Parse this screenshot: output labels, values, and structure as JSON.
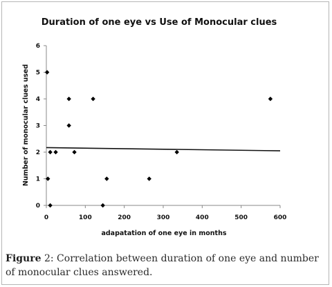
{
  "chart_data": {
    "type": "scatter",
    "title": "Duration of one eye vs Use of Monocular clues",
    "xlabel": "adapatation of one eye in months",
    "ylabel": "Number of monocular clues used",
    "xlim": [
      0,
      600
    ],
    "ylim": [
      0,
      6
    ],
    "x_ticks": [
      0,
      100,
      200,
      300,
      400,
      500,
      600
    ],
    "y_ticks": [
      0,
      1,
      2,
      3,
      4,
      5,
      6
    ],
    "grid": false,
    "legend": "none",
    "marker": "diamond",
    "marker_color": "#000000",
    "points": [
      {
        "x": 2,
        "y": 5
      },
      {
        "x": 4,
        "y": 1
      },
      {
        "x": 10,
        "y": 0
      },
      {
        "x": 10,
        "y": 2
      },
      {
        "x": 24,
        "y": 2
      },
      {
        "x": 58,
        "y": 4
      },
      {
        "x": 58,
        "y": 3
      },
      {
        "x": 72,
        "y": 2
      },
      {
        "x": 120,
        "y": 4
      },
      {
        "x": 145,
        "y": 0
      },
      {
        "x": 155,
        "y": 1
      },
      {
        "x": 264,
        "y": 1
      },
      {
        "x": 335,
        "y": 2
      },
      {
        "x": 575,
        "y": 4
      }
    ],
    "trendline": {
      "type": "linear",
      "x": [
        0,
        600
      ],
      "y": [
        2.17,
        2.05
      ]
    }
  },
  "caption": {
    "label": "Figure",
    "number": "2",
    "text": ": Correlation between duration of one eye and number of monocular clues answered."
  }
}
